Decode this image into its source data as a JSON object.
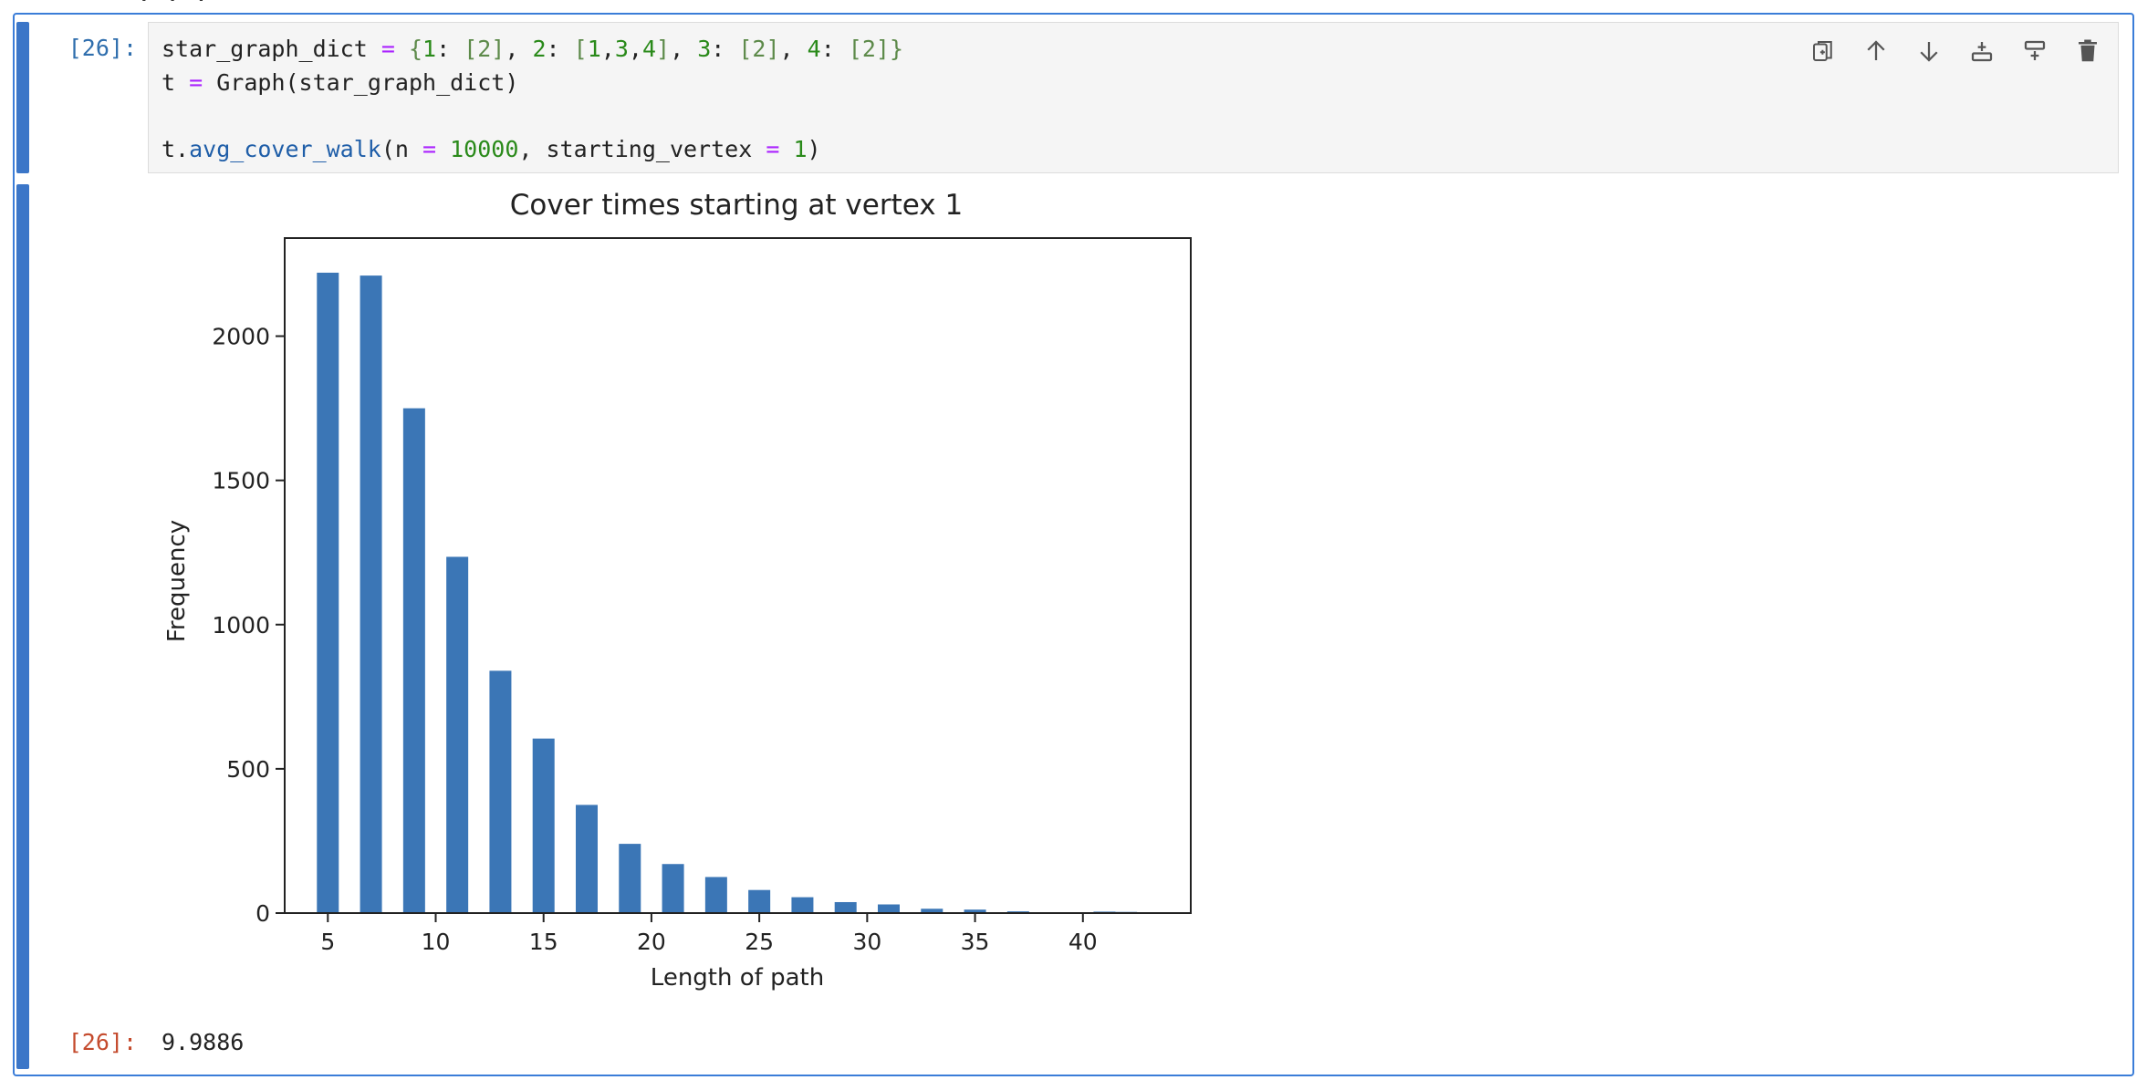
{
  "cell": {
    "input_prompt": "[26]:",
    "output_prompt": "[26]:",
    "result_value": "9.9886"
  },
  "code": {
    "line1": {
      "name": "star_graph_dict",
      "eq": "=",
      "b0": "{",
      "k1": "1",
      "c1": ": ",
      "l1": "[2]",
      "s1": ", ",
      "k2": "2",
      "c2": ": ",
      "l2a": "[",
      "v2a": "1",
      "cm1": ",",
      "v2b": "3",
      "cm2": ",",
      "v2c": "4",
      "l2b": "]",
      "s2": ", ",
      "k3": "3",
      "c3": ": ",
      "l3": "[2]",
      "s3": ", ",
      "k4": "4",
      "c4": ": ",
      "l4": "[2]",
      "b1": "}"
    },
    "line2": {
      "var": "t",
      "eq": "=",
      "rest": "Graph(star_graph_dict)"
    },
    "line4": {
      "obj": "t.",
      "method": "avg_cover_walk",
      "p1": "(n ",
      "eq1": "=",
      "num": "10000",
      "p2": ", starting_vertex ",
      "eq2": "=",
      "num2": "1",
      "p3": ")"
    }
  },
  "toolbar": {
    "icons": [
      "duplicate-icon",
      "move-up-icon",
      "move-down-icon",
      "insert-below-icon",
      "insert-above-icon",
      "delete-icon"
    ]
  },
  "chart_data": {
    "type": "bar",
    "title": "Cover times starting at vertex 1",
    "xlabel": "Length of path",
    "ylabel": "Frequency",
    "x": [
      5,
      7,
      9,
      11,
      13,
      15,
      17,
      19,
      21,
      23,
      25,
      27,
      29,
      31,
      33,
      35,
      37,
      39,
      41,
      42
    ],
    "values": [
      2220,
      2210,
      1750,
      1235,
      840,
      605,
      375,
      240,
      170,
      125,
      80,
      55,
      38,
      30,
      15,
      12,
      6,
      2,
      5,
      4
    ],
    "xlim": [
      3,
      45
    ],
    "ylim": [
      0,
      2340
    ],
    "xticks": [
      5,
      10,
      15,
      20,
      25,
      30,
      35,
      40
    ],
    "yticks": [
      0,
      500,
      1000,
      1500,
      2000
    ],
    "color": "#3b76b6",
    "grid": false
  }
}
